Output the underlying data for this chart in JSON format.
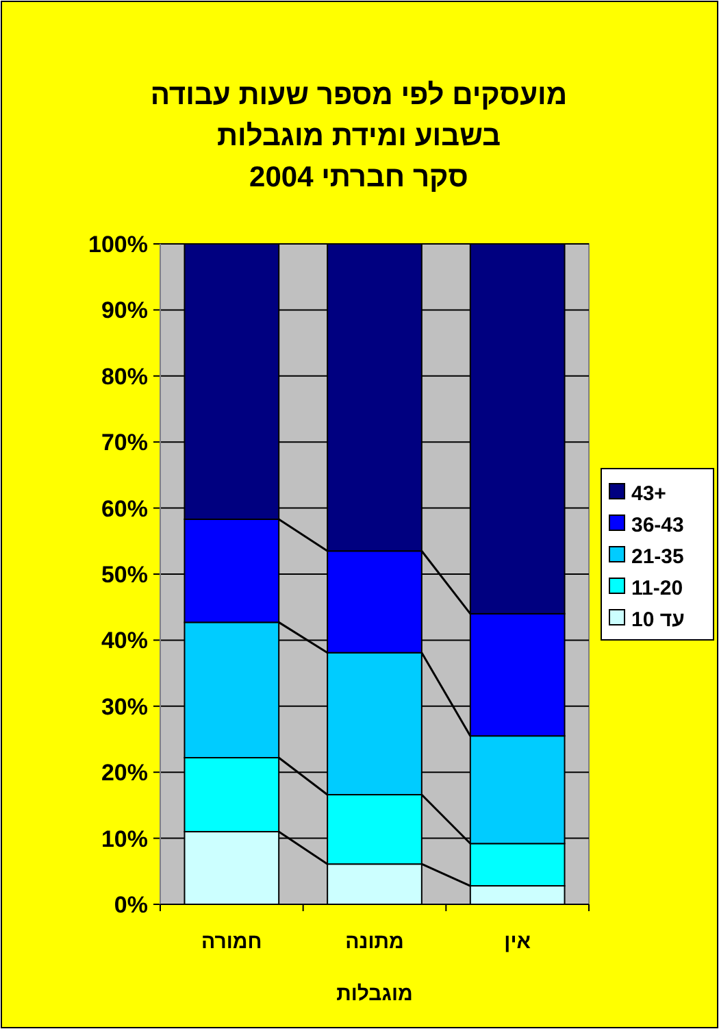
{
  "chart_data": {
    "type": "bar",
    "stacked": true,
    "title": "מועסקים לפי מספר שעות עבודה\nבשבוע ומידת מוגבלות\nסקר חברתי 2004",
    "xlabel": "מוגבלות",
    "categories": [
      "חמורה",
      "מתונה",
      "אין"
    ],
    "series": [
      {
        "name": "עד 10",
        "color": "#ccffff",
        "values": [
          11.0,
          6.1,
          2.8
        ]
      },
      {
        "name": "11-20",
        "color": "#00ffff",
        "values": [
          11.2,
          10.5,
          6.4
        ]
      },
      {
        "name": "21-35",
        "color": "#00ccff",
        "values": [
          20.5,
          21.5,
          16.3
        ]
      },
      {
        "name": "36-43",
        "color": "#0000ff",
        "values": [
          15.6,
          15.4,
          18.5
        ]
      },
      {
        "name": "43+",
        "color": "#000080",
        "values": [
          41.7,
          46.5,
          56.0
        ]
      }
    ],
    "ylim": [
      0,
      100
    ],
    "yticks": [
      {
        "value": 0,
        "label": "0%"
      },
      {
        "value": 10,
        "label": "10%"
      },
      {
        "value": 20,
        "label": "20%"
      },
      {
        "value": 30,
        "label": "30%"
      },
      {
        "value": 40,
        "label": "40%"
      },
      {
        "value": 50,
        "label": "50%"
      },
      {
        "value": 60,
        "label": "60%"
      },
      {
        "value": 70,
        "label": "70%"
      },
      {
        "value": 80,
        "label": "80%"
      },
      {
        "value": 90,
        "label": "90%"
      },
      {
        "value": 100,
        "label": "100%"
      }
    ],
    "grid": "y",
    "legend": "right"
  }
}
